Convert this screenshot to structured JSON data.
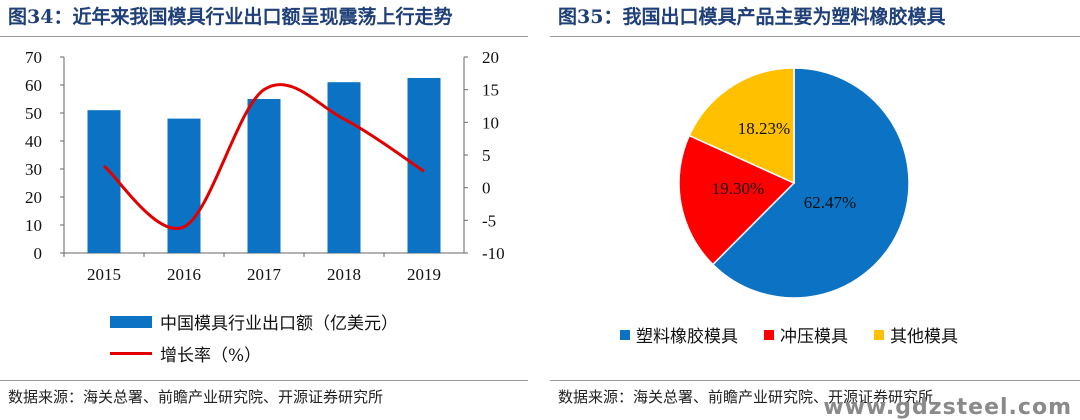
{
  "left": {
    "title": "图34：近年来我国模具行业出口额呈现震荡上行走势",
    "source": "数据来源：海关总署、前瞻产业研究院、开源证券研究所",
    "legend_bar": "中国模具行业出口额（亿美元）",
    "legend_line": "增长率（%）"
  },
  "right": {
    "title": "图35：我国出口模具产品主要为塑料橡胶模具",
    "source": "数据来源：海关总署、前瞻产业研究院、开源证券研究所",
    "watermark": "www.gdzsteel.com"
  },
  "colors": {
    "bar": "#0c72c3",
    "line": "#e10000",
    "pie": [
      "#0c72c3",
      "#ff0000",
      "#ffc000"
    ],
    "title": "#1f3f77"
  },
  "chart_data": [
    {
      "type": "bar",
      "title": "图34：近年来我国模具行业出口额呈现震荡上行走势",
      "categories": [
        "2015",
        "2016",
        "2017",
        "2018",
        "2019"
      ],
      "series": [
        {
          "name": "中国模具行业出口额（亿美元）",
          "type": "bar",
          "axis": "left",
          "values": [
            51,
            48,
            55,
            61,
            62.5
          ]
        },
        {
          "name": "增长率（%）",
          "type": "line",
          "axis": "right",
          "values": [
            3.3,
            -6.0,
            15.0,
            10.5,
            2.5
          ]
        }
      ],
      "ylim_left": [
        0,
        70
      ],
      "yticks_left": [
        0,
        10,
        20,
        30,
        40,
        50,
        60,
        70
      ],
      "ylim_right": [
        -10,
        20
      ],
      "yticks_right": [
        -10,
        -5,
        0,
        5,
        10,
        15,
        20
      ],
      "legend": "bottom"
    },
    {
      "type": "pie",
      "title": "图35：我国出口模具产品主要为塑料橡胶模具",
      "categories": [
        "塑料橡胶模具",
        "冲压模具",
        "其他模具"
      ],
      "values": [
        62.47,
        19.3,
        18.23
      ],
      "labels": [
        "62.47%",
        "19.30%",
        "18.23%"
      ],
      "legend": "bottom"
    }
  ]
}
